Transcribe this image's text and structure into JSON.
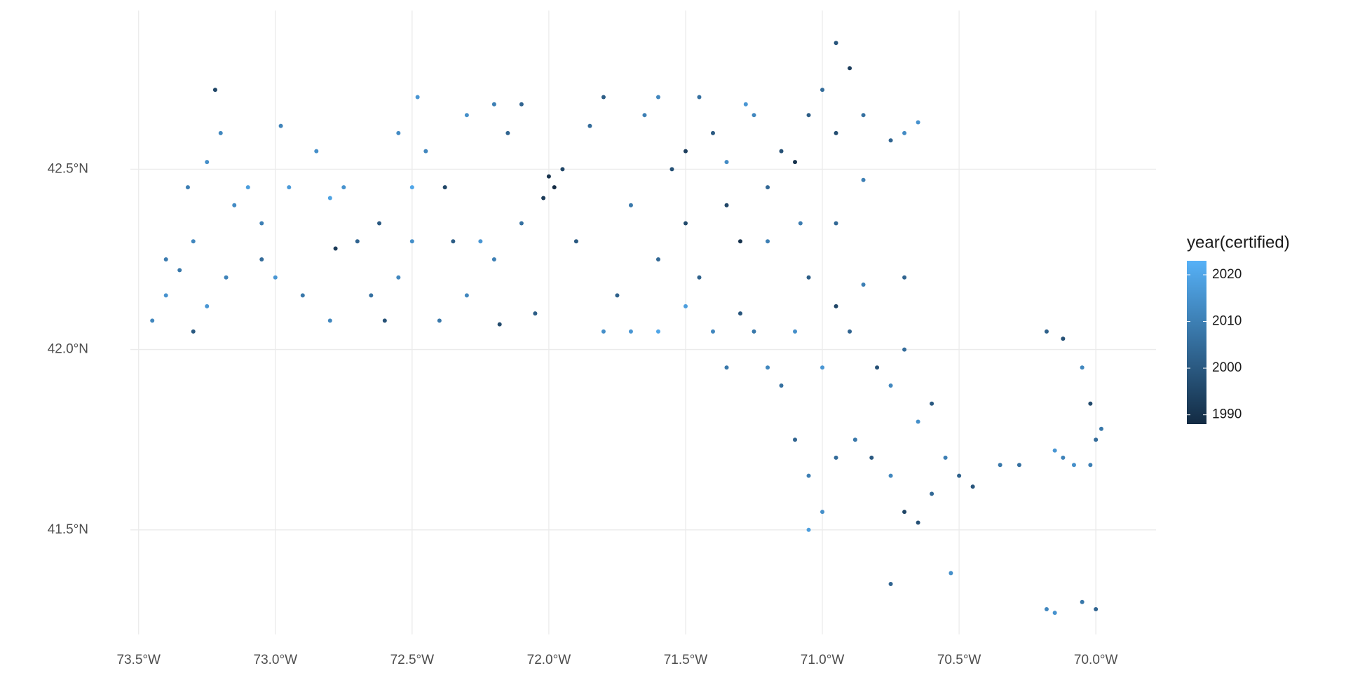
{
  "chart_data": {
    "type": "scatter",
    "legend_title": "year(certified)",
    "xlim": [
      -73.53,
      -69.78
    ],
    "ylim": [
      41.21,
      42.94
    ],
    "xticks": [
      {
        "value": -73.5,
        "label": "73.5°W"
      },
      {
        "value": -73.0,
        "label": "73.0°W"
      },
      {
        "value": -72.5,
        "label": "72.5°W"
      },
      {
        "value": -72.0,
        "label": "72.0°W"
      },
      {
        "value": -71.5,
        "label": "71.5°W"
      },
      {
        "value": -71.0,
        "label": "71.0°W"
      },
      {
        "value": -70.5,
        "label": "70.5°W"
      },
      {
        "value": -70.0,
        "label": "70.0°W"
      }
    ],
    "yticks": [
      {
        "value": 41.5,
        "label": "41.5°N"
      },
      {
        "value": 42.0,
        "label": "42.0°N"
      },
      {
        "value": 42.5,
        "label": "42.5°N"
      }
    ],
    "grid": true,
    "color_low": "#132B43",
    "color_high": "#56B1F7",
    "color_range": [
      1988,
      2023
    ],
    "color_ticks": [
      1990,
      2000,
      2010,
      2020
    ],
    "x": [
      -73.45,
      -73.4,
      -73.35,
      -73.3,
      -73.32,
      -73.25,
      -73.2,
      -73.22,
      -73.15,
      -73.1,
      -73.05,
      -73.25,
      -73.3,
      -73.18,
      -73.4,
      -73.05,
      -72.98,
      -72.95,
      -72.85,
      -72.8,
      -72.78,
      -72.9,
      -72.8,
      -72.7,
      -72.65,
      -72.62,
      -72.6,
      -72.55,
      -72.5,
      -72.5,
      -72.45,
      -72.48,
      -72.38,
      -72.35,
      -72.3,
      -72.4,
      -72.3,
      -72.25,
      -72.2,
      -72.18,
      -72.1,
      -72.15,
      -72.2,
      -72.05,
      -72.0,
      -71.98,
      -72.02,
      -71.95,
      -71.9,
      -71.85,
      -71.8,
      -71.75,
      -71.7,
      -71.65,
      -71.6,
      -71.6,
      -71.55,
      -71.5,
      -71.5,
      -71.45,
      -71.4,
      -71.35,
      -71.3,
      -71.25,
      -71.2,
      -71.15,
      -71.1,
      -71.08,
      -71.05,
      -71.0,
      -70.95,
      -70.9,
      -70.95,
      -70.85,
      -70.75,
      -70.7,
      -70.65,
      -70.85,
      -71.25,
      -71.2,
      -71.15,
      -71.1,
      -71.05,
      -71.0,
      -70.95,
      -70.9,
      -70.85,
      -70.8,
      -70.75,
      -70.7,
      -71.3,
      -71.35,
      -71.1,
      -71.05,
      -71.0,
      -71.05,
      -70.95,
      -70.88,
      -70.82,
      -70.75,
      -70.7,
      -70.65,
      -70.6,
      -70.55,
      -70.5,
      -70.45,
      -70.35,
      -70.28,
      -70.6,
      -70.65,
      -70.18,
      -70.12,
      -70.05,
      -70.02,
      -70.0,
      -69.98,
      -70.02,
      -70.08,
      -70.15,
      -70.12,
      -70.75,
      -70.53,
      -70.18,
      -70.15,
      -70.05,
      -70.0,
      -71.45,
      -71.6,
      -71.8,
      -72.1,
      -71.28,
      -70.7,
      -71.4,
      -71.5,
      -71.7,
      -72.75,
      -72.55,
      -73.0,
      -71.35,
      -71.2,
      -70.95
    ],
    "y": [
      42.08,
      42.15,
      42.22,
      42.3,
      42.45,
      42.52,
      42.6,
      42.72,
      42.4,
      42.45,
      42.35,
      42.12,
      42.05,
      42.2,
      42.25,
      42.25,
      42.62,
      42.45,
      42.55,
      42.42,
      42.28,
      42.15,
      42.08,
      42.3,
      42.15,
      42.35,
      42.08,
      42.2,
      42.3,
      42.45,
      42.55,
      42.7,
      42.45,
      42.3,
      42.65,
      42.08,
      42.15,
      42.3,
      42.25,
      42.07,
      42.35,
      42.6,
      42.68,
      42.1,
      42.48,
      42.45,
      42.42,
      42.5,
      42.3,
      42.62,
      42.05,
      42.15,
      42.4,
      42.65,
      42.05,
      42.25,
      42.5,
      42.55,
      42.35,
      42.2,
      42.6,
      42.4,
      42.3,
      42.65,
      42.45,
      42.55,
      42.52,
      42.35,
      42.65,
      42.72,
      42.6,
      42.78,
      42.85,
      42.65,
      42.58,
      42.6,
      42.63,
      42.47,
      42.05,
      41.95,
      41.9,
      42.05,
      42.2,
      41.95,
      42.12,
      42.05,
      42.18,
      41.95,
      41.9,
      42.0,
      42.1,
      41.95,
      41.75,
      41.65,
      41.55,
      41.5,
      41.7,
      41.75,
      41.7,
      41.65,
      41.55,
      41.52,
      41.6,
      41.7,
      41.65,
      41.62,
      41.68,
      41.68,
      41.85,
      41.8,
      42.05,
      42.03,
      41.95,
      41.85,
      41.75,
      41.78,
      41.68,
      41.68,
      41.72,
      41.7,
      41.35,
      41.38,
      41.28,
      41.27,
      41.3,
      41.28,
      42.7,
      42.7,
      42.7,
      42.68,
      42.68,
      42.2,
      42.05,
      42.12,
      42.05,
      42.45,
      42.6,
      42.2,
      42.52,
      42.3,
      42.35
    ],
    "year": [
      2012,
      2015,
      2008,
      2012,
      2010,
      2014,
      2012,
      1995,
      2013,
      2018,
      2010,
      2016,
      2000,
      2011,
      2009,
      2005,
      2011,
      2017,
      2014,
      2019,
      1992,
      2008,
      2012,
      2003,
      2006,
      2000,
      1998,
      2012,
      2014,
      2020,
      2012,
      2016,
      1995,
      2001,
      2014,
      2008,
      2012,
      2016,
      2010,
      1996,
      2006,
      2003,
      2010,
      2001,
      1990,
      1988,
      1992,
      1995,
      2000,
      2005,
      2014,
      2002,
      2008,
      2010,
      2020,
      2004,
      1998,
      1993,
      1996,
      2002,
      2000,
      1995,
      1990,
      2012,
      2004,
      1998,
      1990,
      2009,
      2001,
      2005,
      1997,
      1993,
      1999,
      2006,
      2003,
      2013,
      2015,
      2010,
      2008,
      2012,
      2006,
      2014,
      2001,
      2016,
      1995,
      2003,
      2010,
      1998,
      2012,
      2005,
      1999,
      2008,
      2003,
      2010,
      2014,
      2018,
      2005,
      2008,
      2000,
      2012,
      1995,
      1998,
      2004,
      2010,
      2002,
      1999,
      2008,
      2006,
      2000,
      2014,
      2002,
      1998,
      2012,
      1996,
      2005,
      2008,
      2010,
      2014,
      2016,
      2011,
      2003,
      2014,
      2012,
      2015,
      2008,
      2003,
      2006,
      2012,
      2001,
      2003,
      2016,
      2003,
      2012,
      2018,
      2016,
      2015,
      2013,
      2016,
      2013,
      2010,
      2004
    ]
  }
}
